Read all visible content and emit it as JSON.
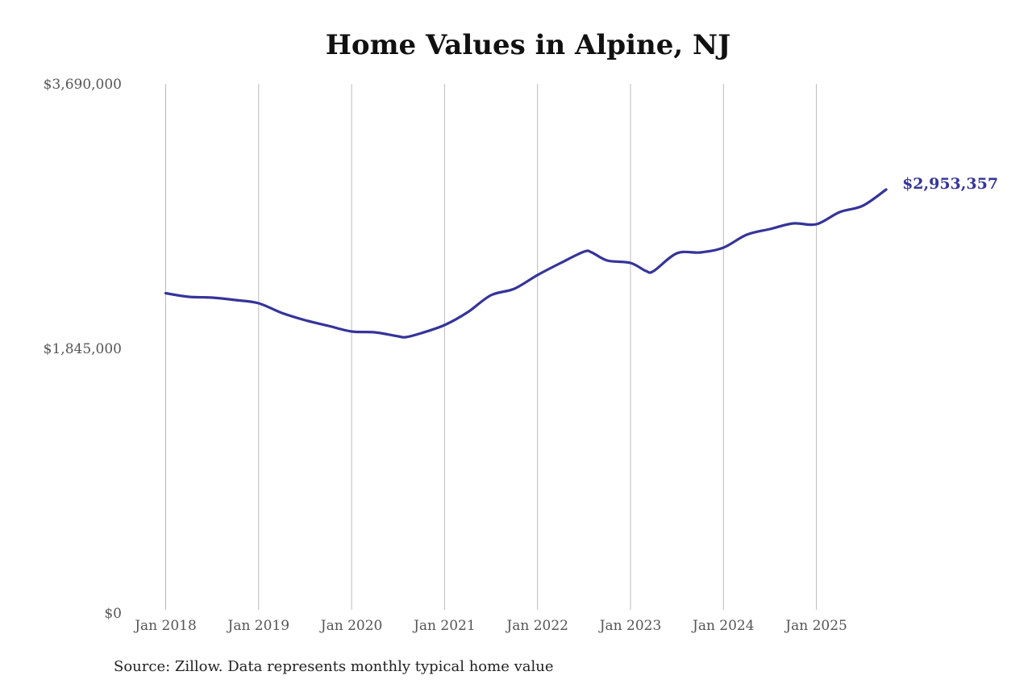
{
  "chart_data": {
    "type": "line",
    "title": "Home Values in Alpine, NJ",
    "xlabel": "",
    "ylabel": "",
    "ylim": [
      0,
      3690000
    ],
    "y_ticks": [
      "$0",
      "$1,845,000",
      "$3,690,000"
    ],
    "y_tick_values": [
      0,
      1845000,
      3690000
    ],
    "x_ticks": [
      "Jan 2018",
      "Jan 2019",
      "Jan 2020",
      "Jan 2021",
      "Jan 2022",
      "Jan 2023",
      "Jan 2024",
      "Jan 2025"
    ],
    "grid": "vertical",
    "legend": "none",
    "series": [
      {
        "name": "Typical home value",
        "color": "#35349a",
        "x": [
          "2018-01",
          "2018-04",
          "2018-07",
          "2018-10",
          "2019-01",
          "2019-04",
          "2019-07",
          "2019-10",
          "2020-01",
          "2020-04",
          "2020-07",
          "2020-08",
          "2020-10",
          "2021-01",
          "2021-04",
          "2021-07",
          "2021-10",
          "2022-01",
          "2022-04",
          "2022-07",
          "2022-08",
          "2022-10",
          "2023-01",
          "2023-03",
          "2023-04",
          "2023-07",
          "2023-10",
          "2024-01",
          "2024-04",
          "2024-07",
          "2024-10",
          "2025-01",
          "2025-04",
          "2025-07",
          "2025-10"
        ],
        "values": [
          2230300,
          2205000,
          2199400,
          2182500,
          2160000,
          2092500,
          2041900,
          2002500,
          1963100,
          1957500,
          1929400,
          1923800,
          1951900,
          2008100,
          2098100,
          2216300,
          2261300,
          2356900,
          2441300,
          2520000,
          2514400,
          2458100,
          2441300,
          2385000,
          2385000,
          2508800,
          2514400,
          2548100,
          2638100,
          2677500,
          2716900,
          2711300,
          2795600,
          2840600,
          2953357
        ]
      }
    ],
    "annotations": [
      {
        "text": "$2,953,357",
        "target": "last_point",
        "color": "#35349a"
      }
    ]
  },
  "header": {
    "title": "Home Values in Alpine, NJ"
  },
  "footer": {
    "source": "Source: Zillow. Data represents monthly typical home value"
  },
  "end_label": "$2,953,357",
  "colors": {
    "line": "#35349a",
    "grid": "#bbbbbb",
    "tick_text": "#555555"
  }
}
